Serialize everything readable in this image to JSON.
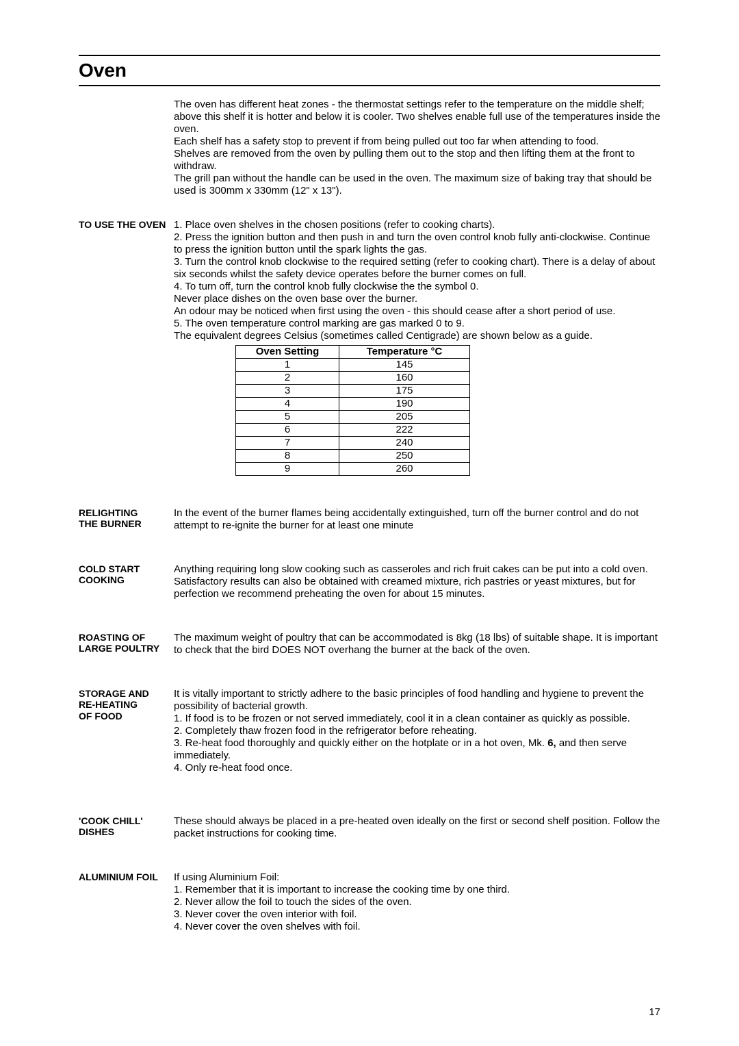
{
  "page_number": "17",
  "title": "Oven",
  "intro": {
    "p1": "The oven has different heat zones - the thermostat settings refer to the temperature on the middle shelf; above this shelf it is hotter and below it is cooler. Two shelves enable full use of the temperatures inside the oven.",
    "p2": "Each shelf has a safety stop to prevent if from being pulled out too far when attending to food.",
    "p3": "Shelves are removed from the oven by pulling them out to the stop and then lifting them at the front to withdraw.",
    "p4": "The grill pan without the handle can be used in the oven. The maximum size of baking tray that should be used is 300mm x 330mm (12\" x 13\")."
  },
  "use_oven": {
    "label": "TO USE THE OVEN",
    "s1": "1. Place oven shelves in the chosen positions (refer to cooking charts).",
    "s2": "2. Press the ignition button and then push in and turn the oven control knob fully anti-clockwise. Continue to press the ignition button until the spark lights the gas.",
    "s3": "3. Turn the control knob clockwise to the required setting (refer to cooking chart). There is a delay of about six seconds whilst the safety device operates before the burner comes on full.",
    "s4": "4. To turn off, turn the control knob fully clockwise the the symbol 0.",
    "s5": "Never place dishes on the oven base over the burner.",
    "s6": "An odour may be noticed when first using the oven - this should cease after a short period of use.",
    "s7": "5. The oven temperature control marking are gas marked 0 to 9.",
    "s8": "The equivalent degrees Celsius (sometimes called Centigrade) are shown below as a guide."
  },
  "temp_table": {
    "header_setting": "Oven Setting",
    "header_temp": "Temperature °C",
    "columns": [
      "Oven Setting",
      "Temperature °C"
    ],
    "rows": [
      [
        "1",
        "145"
      ],
      [
        "2",
        "160"
      ],
      [
        "3",
        "175"
      ],
      [
        "4",
        "190"
      ],
      [
        "5",
        "205"
      ],
      [
        "6",
        "222"
      ],
      [
        "7",
        "240"
      ],
      [
        "8",
        "250"
      ],
      [
        "9",
        "260"
      ]
    ]
  },
  "relight": {
    "label_l1": "RELIGHTING",
    "label_l2": "THE BURNER",
    "text": "In the event of the burner flames being accidentally extinguished, turn off the burner control and do not attempt to re-ignite the burner for at least one minute"
  },
  "cold_start": {
    "label_l1": "COLD START",
    "label_l2": "COOKING",
    "text": "Anything requiring long slow cooking such as casseroles and rich fruit cakes can be put into a cold oven. Satisfactory results can also be obtained with creamed mixture, rich pastries or yeast mixtures, but for perfection we recommend preheating the oven for about 15 minutes."
  },
  "roasting": {
    "label_l1": "ROASTING OF",
    "label_l2": "LARGE POULTRY",
    "text": "The maximum weight of poultry that can be accommodated is 8kg (18 lbs) of suitable shape. It is important to check that the bird DOES NOT overhang the burner at the back of the oven."
  },
  "storage": {
    "label_l1": "STORAGE AND",
    "label_l2": "RE-HEATING",
    "label_l3": "OF FOOD",
    "p1": "It is vitally important to strictly adhere to the basic principles of food handling and hygiene to prevent the possibility of bacterial growth.",
    "p2": "1. If food is to be frozen or not served immediately, cool it in a clean container as quickly as possible.",
    "p3": "2. Completely thaw frozen food in the refrigerator before reheating.",
    "p4a": "3. Re-heat food thoroughly and quickly either on the hotplate or in a hot oven, Mk. ",
    "p4b": "6,",
    "p4c": " and then serve immediately.",
    "p5": "4. Only re-heat food once."
  },
  "cook_chill": {
    "label_l1": "'COOK CHILL'",
    "label_l2": "DISHES",
    "text": "These should always be placed in a pre-heated oven ideally on the first or second shelf position. Follow the packet instructions for cooking time."
  },
  "foil": {
    "label": "ALUMINIUM FOIL",
    "p1": "If using Aluminium Foil:",
    "p2": "1. Remember that it is important to increase the cooking time by one third.",
    "p3": "2. Never allow the foil to touch the sides of the oven.",
    "p4": "3. Never cover the oven interior with foil.",
    "p5": "4. Never cover the oven shelves with foil."
  }
}
